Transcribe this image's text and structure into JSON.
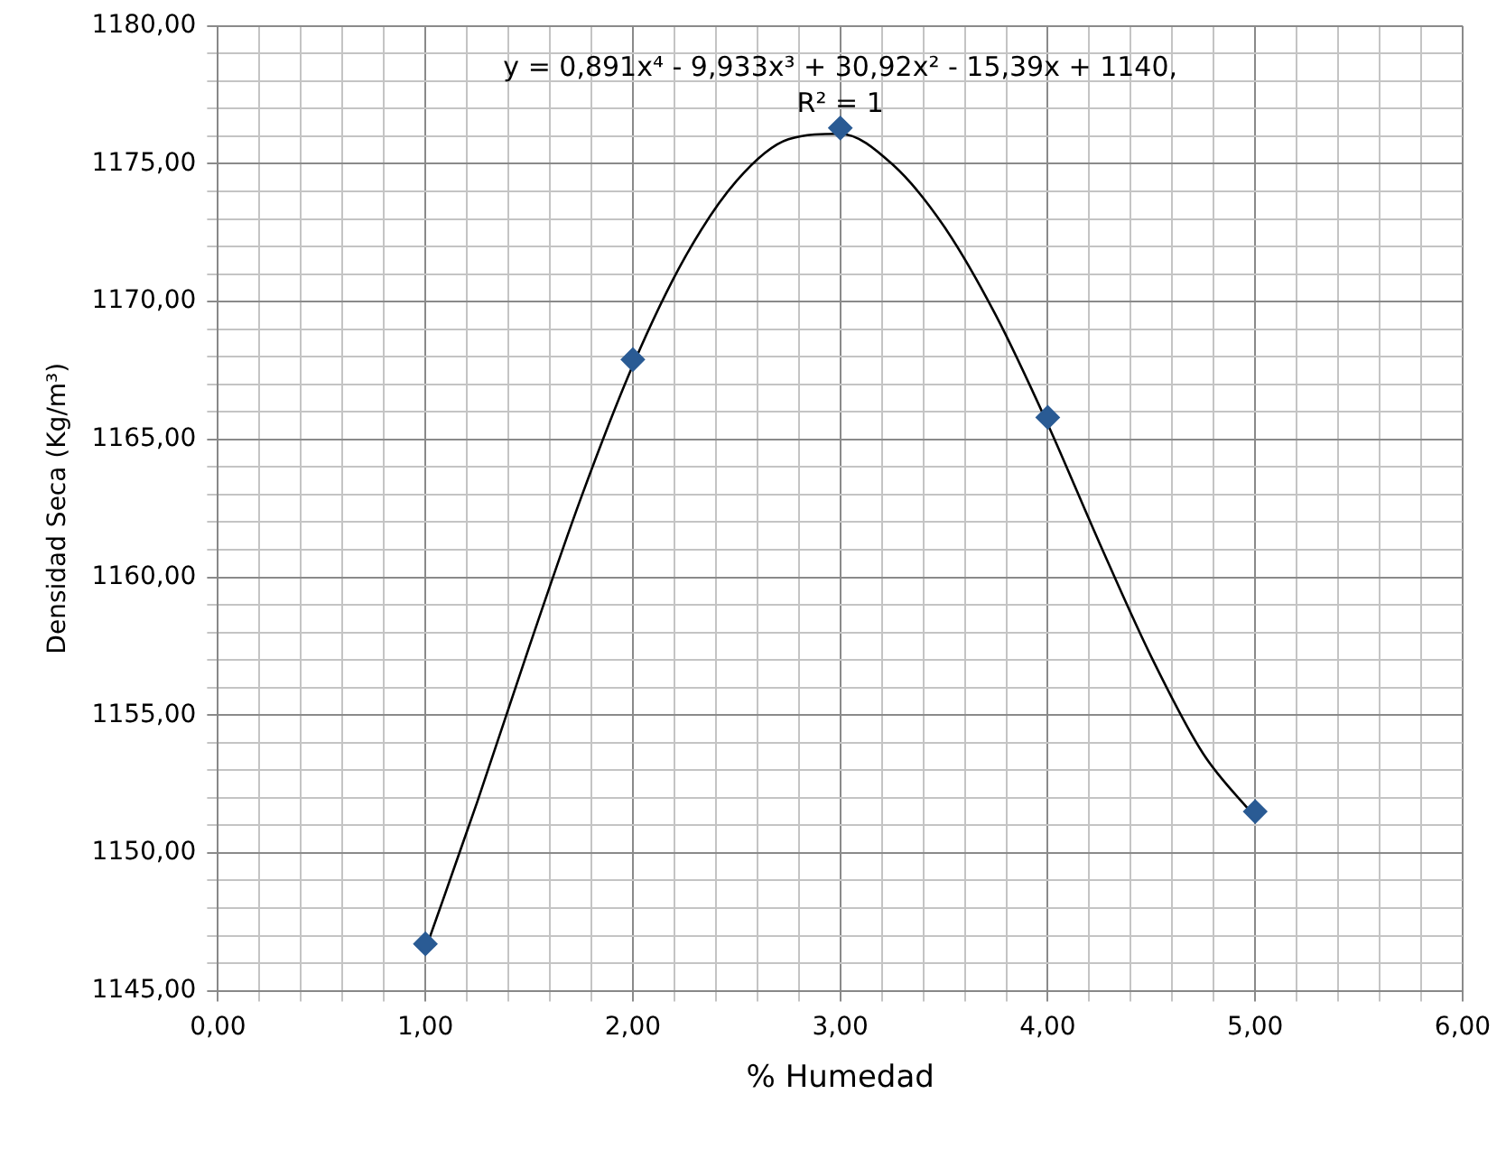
{
  "chart_data": {
    "type": "scatter",
    "xlabel": "% Humedad",
    "ylabel": "Densidad Seca (Kg/m³)",
    "annotations": [
      "y = 0,891x⁴ - 9,933x³ + 30,92x² - 15,39x + 1140,",
      "R² = 1"
    ],
    "series": [
      {
        "color": "#2a5b94",
        "x": [
          1,
          2,
          3,
          4,
          5
        ],
        "values": [
          1146.7,
          1167.9,
          1176.3,
          1165.8,
          1151.5
        ]
      },
      {
        "type": "line",
        "color": "#000000",
        "marker": "none",
        "x": [
          1,
          1.25,
          1.5,
          1.75,
          2,
          2.25,
          2.5,
          2.75,
          3,
          3.25,
          3.5,
          3.75,
          4,
          4.25,
          4.5,
          4.75,
          5
        ],
        "values": [
          1146.49,
          1151.85,
          1157.47,
          1162.88,
          1167.69,
          1171.59,
          1174.38,
          1175.89,
          1176.09,
          1174.99,
          1172.73,
          1169.5,
          1165.55,
          1161.23,
          1157.1,
          1153.59,
          1151.3
        ]
      }
    ],
    "marker": "diamond",
    "line_style": "solid",
    "grid": true,
    "legend": false,
    "xlim": [
      0,
      6
    ],
    "xticks": [
      {
        "value": 0,
        "label": "0,00"
      },
      {
        "value": 0.2,
        "label": null
      },
      {
        "value": 0.4,
        "label": null
      },
      {
        "value": 0.6,
        "label": null
      },
      {
        "value": 0.8,
        "label": null
      },
      {
        "value": 1,
        "label": "1,00"
      },
      {
        "value": 1.2,
        "label": null
      },
      {
        "value": 1.4,
        "label": null
      },
      {
        "value": 1.6,
        "label": null
      },
      {
        "value": 1.8,
        "label": null
      },
      {
        "value": 2,
        "label": "2,00"
      },
      {
        "value": 2.2,
        "label": null
      },
      {
        "value": 2.4,
        "label": null
      },
      {
        "value": 2.6,
        "label": null
      },
      {
        "value": 2.8,
        "label": null
      },
      {
        "value": 3,
        "label": "3,00"
      },
      {
        "value": 3.2,
        "label": null
      },
      {
        "value": 3.4,
        "label": null
      },
      {
        "value": 3.6,
        "label": null
      },
      {
        "value": 3.8,
        "label": null
      },
      {
        "value": 4,
        "label": "4,00"
      },
      {
        "value": 4.2,
        "label": null
      },
      {
        "value": 4.4,
        "label": null
      },
      {
        "value": 4.6,
        "label": null
      },
      {
        "value": 4.8,
        "label": null
      },
      {
        "value": 5,
        "label": "5,00"
      },
      {
        "value": 5.2,
        "label": null
      },
      {
        "value": 5.4,
        "label": null
      },
      {
        "value": 5.6,
        "label": null
      },
      {
        "value": 5.8,
        "label": null
      },
      {
        "value": 6,
        "label": "6,00"
      }
    ],
    "ylim": [
      1145,
      1180
    ],
    "yticks": [
      {
        "value": 1145,
        "label": "1145,00"
      },
      {
        "value": 1146,
        "label": null
      },
      {
        "value": 1147,
        "label": null
      },
      {
        "value": 1148,
        "label": null
      },
      {
        "value": 1149,
        "label": null
      },
      {
        "value": 1150,
        "label": "1150,00"
      },
      {
        "value": 1151,
        "label": null
      },
      {
        "value": 1152,
        "label": null
      },
      {
        "value": 1153,
        "label": null
      },
      {
        "value": 1154,
        "label": null
      },
      {
        "value": 1155,
        "label": "1155,00"
      },
      {
        "value": 1156,
        "label": null
      },
      {
        "value": 1157,
        "label": null
      },
      {
        "value": 1158,
        "label": null
      },
      {
        "value": 1159,
        "label": null
      },
      {
        "value": 1160,
        "label": "1160,00"
      },
      {
        "value": 1161,
        "label": null
      },
      {
        "value": 1162,
        "label": null
      },
      {
        "value": 1163,
        "label": null
      },
      {
        "value": 1164,
        "label": null
      },
      {
        "value": 1165,
        "label": "1165,00"
      },
      {
        "value": 1166,
        "label": null
      },
      {
        "value": 1167,
        "label": null
      },
      {
        "value": 1168,
        "label": null
      },
      {
        "value": 1169,
        "label": null
      },
      {
        "value": 1170,
        "label": "1170,00"
      },
      {
        "value": 1171,
        "label": null
      },
      {
        "value": 1172,
        "label": null
      },
      {
        "value": 1173,
        "label": null
      },
      {
        "value": 1174,
        "label": null
      },
      {
        "value": 1175,
        "label": "1175,00"
      },
      {
        "value": 1176,
        "label": null
      },
      {
        "value": 1177,
        "label": null
      },
      {
        "value": 1178,
        "label": null
      },
      {
        "value": 1179,
        "label": null
      },
      {
        "value": 1180,
        "label": "1180,00"
      }
    ]
  }
}
